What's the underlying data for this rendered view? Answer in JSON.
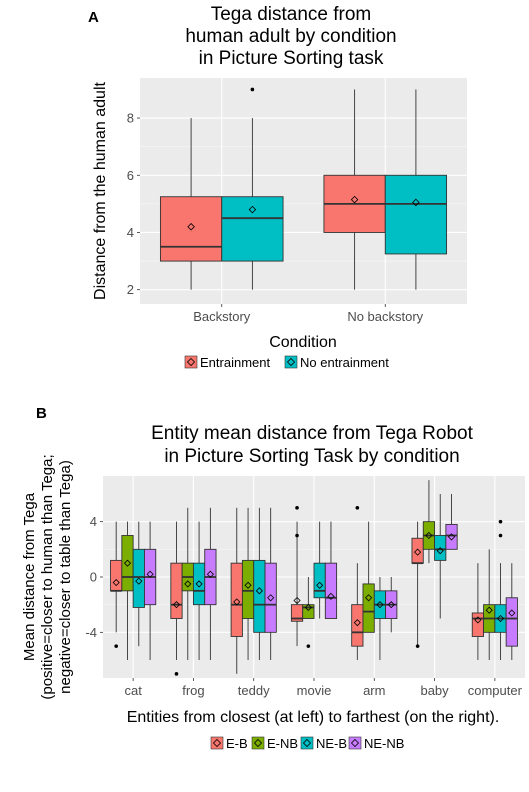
{
  "panels": [
    {
      "label": "A",
      "title_lines": [
        "Tega distance from",
        "human adult by condition",
        "in Picture Sorting task"
      ],
      "xlabel": "Condition",
      "ylabel_lines": [
        "Distance from the human adult"
      ],
      "legend_items": [
        {
          "label": "Entrainment",
          "color": "#F8766D"
        },
        {
          "label": "No entrainment",
          "color": "#00BFC4"
        }
      ]
    },
    {
      "label": "B",
      "title_lines": [
        "Entity mean distance from Tega Robot",
        "in Picture Sorting Task by condition"
      ],
      "xlabel": "Entities from closest (at left) to farthest (on the right).",
      "ylabel_lines": [
        "Mean distance from Tega",
        "(positive=closer to human than Tega;",
        "negative=closer to table than Tega)"
      ],
      "legend_items": [
        {
          "label": "E-B",
          "color": "#F8766D"
        },
        {
          "label": "E-NB",
          "color": "#7CAE00"
        },
        {
          "label": "NE-B",
          "color": "#00BFC4"
        },
        {
          "label": "NE-NB",
          "color": "#C77CFF"
        }
      ]
    }
  ],
  "chart_data": [
    {
      "type": "box",
      "title": "Tega distance from human adult by condition in Picture Sorting task",
      "xlabel": "Condition",
      "ylabel": "Distance from the human adult",
      "categories": [
        "Backstory",
        "No backstory"
      ],
      "ylim": [
        1.5,
        9.4
      ],
      "yticks": [
        2,
        4,
        6,
        8
      ],
      "grid": true,
      "legend_position": "bottom",
      "series": [
        {
          "name": "Entrainment",
          "color": "#F8766D",
          "boxes": [
            {
              "whisker_low": 2,
              "q1": 3,
              "median": 3.5,
              "q3": 5.25,
              "whisker_high": 8,
              "mean": 4.2,
              "outliers": []
            },
            {
              "whisker_low": 2,
              "q1": 4,
              "median": 5,
              "q3": 6,
              "whisker_high": 9,
              "mean": 5.15,
              "outliers": []
            }
          ]
        },
        {
          "name": "No entrainment",
          "color": "#00BFC4",
          "boxes": [
            {
              "whisker_low": 2,
              "q1": 3,
              "median": 4.5,
              "q3": 5.25,
              "whisker_high": 8,
              "mean": 4.8,
              "outliers": [
                9
              ]
            },
            {
              "whisker_low": 2,
              "q1": 3.25,
              "median": 5,
              "q3": 6,
              "whisker_high": 9,
              "mean": 5.05,
              "outliers": []
            }
          ]
        }
      ]
    },
    {
      "type": "box",
      "title": "Entity mean distance from Tega Robot in Picture Sorting Task by condition",
      "xlabel": "Entities from closest (at left) to farthest (on the right).",
      "ylabel": "Mean distance from Tega (positive=closer to human than Tega; negative=closer to table than Tega)",
      "categories": [
        "cat",
        "frog",
        "teddy",
        "movie",
        "arm",
        "baby",
        "computer"
      ],
      "ylim": [
        -7.3,
        7.3
      ],
      "yticks": [
        -4,
        0,
        4
      ],
      "grid": true,
      "legend_position": "bottom",
      "series": [
        {
          "name": "E-B",
          "color": "#F8766D",
          "boxes": [
            {
              "whisker_low": -4,
              "q1": -1,
              "median": -1,
              "q3": 1.2,
              "whisker_high": 4,
              "mean": -0.4,
              "outliers": [
                -5
              ]
            },
            {
              "whisker_low": -6,
              "q1": -3,
              "median": -2,
              "q3": 1,
              "whisker_high": 4,
              "mean": -2,
              "outliers": [
                -7
              ]
            },
            {
              "whisker_low": -7,
              "q1": -4.3,
              "median": -2,
              "q3": 1,
              "whisker_high": 5,
              "mean": -1.8,
              "outliers": []
            },
            {
              "whisker_low": -5,
              "q1": -3.2,
              "median": -3,
              "q3": -2,
              "whisker_high": 4,
              "mean": -1.7,
              "outliers": [
                3,
                5
              ]
            },
            {
              "whisker_low": -6,
              "q1": -5,
              "median": -4,
              "q3": -2,
              "whisker_high": 1,
              "mean": -3.3,
              "outliers": [
                5
              ]
            },
            {
              "whisker_low": -5,
              "q1": 1,
              "median": 1,
              "q3": 2.8,
              "whisker_high": 4,
              "mean": 1.8,
              "outliers": [
                -5
              ]
            },
            {
              "whisker_low": -6,
              "q1": -4.3,
              "median": -3,
              "q3": -2.6,
              "whisker_high": 1,
              "mean": -3.1,
              "outliers": []
            }
          ]
        },
        {
          "name": "E-NB",
          "color": "#7CAE00",
          "boxes": [
            {
              "whisker_low": -6,
              "q1": -1,
              "median": 0,
              "q3": 3,
              "whisker_high": 4,
              "mean": 1,
              "outliers": []
            },
            {
              "whisker_low": -6,
              "q1": -1,
              "median": 0,
              "q3": 1,
              "whisker_high": 5,
              "mean": -0.5,
              "outliers": []
            },
            {
              "whisker_low": -6,
              "q1": -3,
              "median": -1,
              "q3": 1.2,
              "whisker_high": 5,
              "mean": -0.6,
              "outliers": []
            },
            {
              "whisker_low": -3,
              "q1": -3,
              "median": -2.2,
              "q3": -2,
              "whisker_high": 0,
              "mean": -2.2,
              "outliers": [
                -5
              ]
            },
            {
              "whisker_low": -4,
              "q1": -4,
              "median": -2.5,
              "q3": -0.5,
              "whisker_high": 4,
              "mean": -1.5,
              "outliers": []
            },
            {
              "whisker_low": 1,
              "q1": 2,
              "median": 3,
              "q3": 4,
              "whisker_high": 7,
              "mean": 3,
              "outliers": []
            },
            {
              "whisker_low": -6,
              "q1": -4,
              "median": -3,
              "q3": -2,
              "whisker_high": 2,
              "mean": -2.4,
              "outliers": []
            }
          ]
        },
        {
          "name": "NE-B",
          "color": "#00BFC4",
          "boxes": [
            {
              "whisker_low": -5,
              "q1": -2.2,
              "median": 0,
              "q3": 2,
              "whisker_high": 4,
              "mean": -0.3,
              "outliers": []
            },
            {
              "whisker_low": -6,
              "q1": -2,
              "median": -1,
              "q3": 1,
              "whisker_high": 4,
              "mean": -0.5,
              "outliers": []
            },
            {
              "whisker_low": -6,
              "q1": -4,
              "median": -2,
              "q3": 1.2,
              "whisker_high": 5,
              "mean": -1,
              "outliers": []
            },
            {
              "whisker_low": -3,
              "q1": -1.5,
              "median": -1,
              "q3": 1,
              "whisker_high": 4,
              "mean": -0.6,
              "outliers": []
            },
            {
              "whisker_low": -6,
              "q1": -3,
              "median": -2,
              "q3": -1,
              "whisker_high": 0,
              "mean": -2,
              "outliers": []
            },
            {
              "whisker_low": -3,
              "q1": 1.2,
              "median": 2,
              "q3": 3,
              "whisker_high": 6,
              "mean": 1.9,
              "outliers": []
            },
            {
              "whisker_low": -6,
              "q1": -4,
              "median": -3,
              "q3": -2,
              "whisker_high": 1,
              "mean": -3,
              "outliers": [
                3,
                4
              ]
            }
          ]
        },
        {
          "name": "NE-NB",
          "color": "#C77CFF",
          "boxes": [
            {
              "whisker_low": -6,
              "q1": -2,
              "median": 0,
              "q3": 2,
              "whisker_high": 4,
              "mean": 0.2,
              "outliers": []
            },
            {
              "whisker_low": -6,
              "q1": -2,
              "median": 0,
              "q3": 2,
              "whisker_high": 5,
              "mean": 0.2,
              "outliers": []
            },
            {
              "whisker_low": -6,
              "q1": -4,
              "median": -2,
              "q3": 1,
              "whisker_high": 5,
              "mean": -1.5,
              "outliers": []
            },
            {
              "whisker_low": -3,
              "q1": -3,
              "median": -1.5,
              "q3": 1,
              "whisker_high": 4,
              "mean": -1.4,
              "outliers": []
            },
            {
              "whisker_low": -4,
              "q1": -3,
              "median": -2,
              "q3": -1,
              "whisker_high": 0,
              "mean": -2,
              "outliers": []
            },
            {
              "whisker_low": 2,
              "q1": 2,
              "median": 3,
              "q3": 3.8,
              "whisker_high": 6,
              "mean": 2.9,
              "outliers": []
            },
            {
              "whisker_low": -6,
              "q1": -5,
              "median": -3,
              "q3": -1.5,
              "whisker_high": 1,
              "mean": -2.6,
              "outliers": []
            }
          ]
        }
      ]
    }
  ]
}
